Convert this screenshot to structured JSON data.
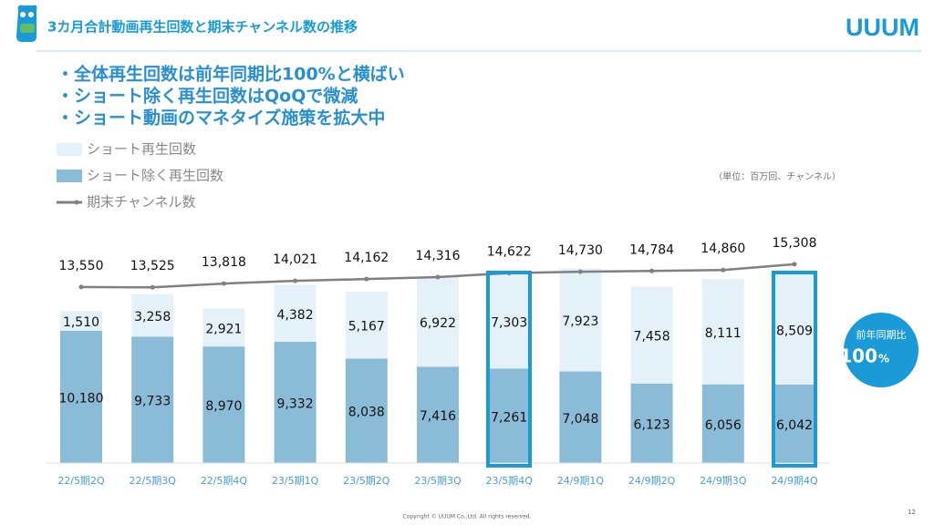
{
  "header": {
    "title": "3カ月合計動画再生回数と期末チャンネル数の推移",
    "logo": "UUUM"
  },
  "bullets": [
    "・全体再生回数は前年同期比100%と横ばい",
    "・ショート除く再生回数はQoQで微減",
    "・ショート動画のマネタイズ施策を拡大中"
  ],
  "unit_note": "（単位：百万回、チャンネル）",
  "badge": {
    "label": "前年同期比",
    "value": "100",
    "unit": "%"
  },
  "footer": {
    "copyright": "Copyright © UUUM Co.,Ltd. All rights reserved.",
    "page": "12"
  },
  "chart_data": {
    "type": "bar",
    "categories": [
      "22/5期2Q",
      "22/5期3Q",
      "22/5期4Q",
      "23/5期1Q",
      "23/5期2Q",
      "23/5期3Q",
      "23/5期4Q",
      "24/9期1Q",
      "24/9期2Q",
      "24/9期3Q",
      "24/9期4Q"
    ],
    "stacked": true,
    "ylim": [
      0,
      16700
    ],
    "series": [
      {
        "name": "ショート除く再生回数",
        "color": "#8bbcd7",
        "values": [
          10180,
          9733,
          8970,
          9332,
          8038,
          7416,
          7261,
          7048,
          6123,
          6056,
          6042
        ],
        "value_labels": [
          "10,180",
          "9,733",
          "8,970",
          "9,332",
          "8,038",
          "7,416",
          "7,261",
          "7,048",
          "6,123",
          "6,056",
          "6,042"
        ]
      },
      {
        "name": "ショート再生回数",
        "color": "#e4f1f9",
        "values": [
          1510,
          3258,
          2921,
          4382,
          5167,
          6922,
          7303,
          7923,
          7458,
          8111,
          8509
        ],
        "value_labels": [
          "1,510",
          "3,258",
          "2,921",
          "4,382",
          "5,167",
          "6,922",
          "7,303",
          "7,923",
          "7,458",
          "8,111",
          "8,509"
        ]
      },
      {
        "name": "期末チャンネル数",
        "type": "line",
        "color": "#808080",
        "values": [
          13550,
          13525,
          13818,
          14021,
          14162,
          14316,
          14622,
          14730,
          14784,
          14860,
          15308
        ],
        "value_labels": [
          "13,550",
          "13,525",
          "13,818",
          "14,021",
          "14,162",
          "14,316",
          "14,622",
          "14,730",
          "14,784",
          "14,860",
          "15,308"
        ]
      }
    ]
  }
}
